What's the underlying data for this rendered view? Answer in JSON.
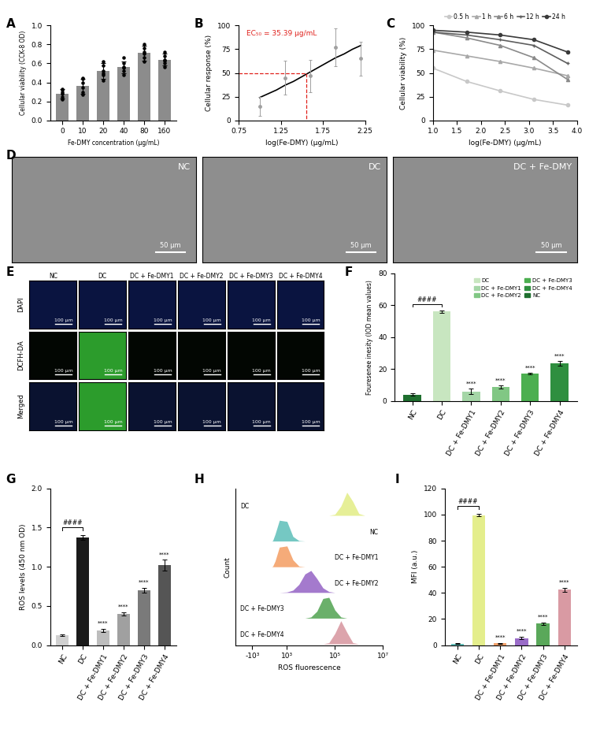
{
  "chart_data": [
    {
      "type": "bar",
      "title": "A",
      "categories": [
        "0",
        "10",
        "20",
        "40",
        "80",
        "160"
      ],
      "values": [
        0.28,
        0.36,
        0.52,
        0.56,
        0.71,
        0.64
      ],
      "errors": [
        0.05,
        0.08,
        0.08,
        0.06,
        0.08,
        0.06
      ],
      "points": [
        [
          0.22,
          0.25,
          0.28,
          0.3,
          0.32,
          0.33
        ],
        [
          0.27,
          0.3,
          0.35,
          0.4,
          0.44,
          0.45
        ],
        [
          0.42,
          0.48,
          0.5,
          0.52,
          0.58,
          0.62
        ],
        [
          0.48,
          0.52,
          0.55,
          0.56,
          0.6,
          0.66
        ],
        [
          0.62,
          0.66,
          0.7,
          0.72,
          0.76,
          0.8
        ],
        [
          0.56,
          0.6,
          0.63,
          0.64,
          0.68,
          0.72
        ]
      ],
      "color": "#8c8c8c",
      "xlabel": "Fe-DMY concentration (μg/mL)",
      "ylabel": "Cellular viability (CCK-8 OD)",
      "ylim": [
        0.0,
        1.0
      ],
      "yticks": [
        0.0,
        0.2,
        0.4,
        0.6,
        0.8,
        1.0
      ]
    },
    {
      "type": "line",
      "title": "B",
      "xlabel": "log(Fe-DMY) (μg/mL)",
      "ylabel": "Cellular response (%)",
      "xlim": [
        0.75,
        2.25
      ],
      "xticks": [
        0.75,
        1.25,
        1.75,
        2.25
      ],
      "ylim": [
        0,
        100
      ],
      "yticks": [
        0,
        25,
        50,
        75,
        100
      ],
      "reference": {
        "x": 1.549,
        "y": 50,
        "color": "#e0201b",
        "label": "EC₅₀ = 35.39 μg/mL"
      },
      "series": [
        {
          "type": "line",
          "color": "#000000",
          "x": [
            1.0,
            1.1,
            1.2,
            1.3,
            1.4,
            1.5,
            1.6,
            1.7,
            1.8,
            1.9,
            2.0,
            2.1,
            2.2
          ],
          "values": [
            24,
            28,
            32,
            37,
            41,
            46,
            51,
            56,
            61,
            66,
            70,
            75,
            79
          ]
        },
        {
          "type": "scatter",
          "color": "#a0a0a0",
          "x": [
            1.0,
            1.3,
            1.6,
            1.9,
            2.2
          ],
          "values": [
            15,
            45,
            47,
            77,
            65
          ],
          "errors": [
            10,
            18,
            17,
            20,
            18
          ]
        }
      ]
    },
    {
      "type": "line",
      "title": "C",
      "xlabel": "log(Fe-DMY) (μg/mL)",
      "ylabel": "Cellular viability (%)",
      "x": [
        1.0,
        1.7,
        2.4,
        3.1,
        3.8
      ],
      "xlim": [
        1.0,
        4.0
      ],
      "xticks": [
        1.0,
        1.5,
        2.0,
        2.5,
        3.0,
        3.5,
        4.0
      ],
      "ylim": [
        0,
        100
      ],
      "yticks": [
        0,
        25,
        50,
        75,
        100
      ],
      "legend": "top",
      "series": [
        {
          "name": "0.5 h",
          "color": "#c8c8c8",
          "marker": "circle",
          "values": [
            55,
            41,
            31,
            22,
            16
          ]
        },
        {
          "name": "1 h",
          "color": "#a8a8a8",
          "marker": "triangle",
          "values": [
            74,
            68,
            62,
            55,
            47
          ]
        },
        {
          "name": "6 h",
          "color": "#8a8a8a",
          "marker": "triangle",
          "values": [
            93,
            87,
            79,
            66,
            43
          ]
        },
        {
          "name": "12 h",
          "color": "#5e5e5e",
          "marker": "plus",
          "values": [
            93,
            90,
            85,
            79,
            60
          ]
        },
        {
          "name": "24 h",
          "color": "#3a3a3a",
          "marker": "circle",
          "values": [
            95,
            93,
            90,
            85,
            72
          ]
        }
      ]
    },
    {
      "type": "image",
      "title": "D",
      "panels": [
        "NC",
        "DC",
        "DC + Fe-DMY"
      ],
      "scale_bar": "50 μm"
    },
    {
      "type": "image",
      "title": "E",
      "rows": [
        "DAPI",
        "DCFH-DA",
        "Merged"
      ],
      "columns": [
        "NC",
        "DC",
        "DC + Fe-DMY1",
        "DC + Fe-DMY2",
        "DC + Fe-DMY3",
        "DC + Fe-DMY4"
      ],
      "scale_bar": "100 μm"
    },
    {
      "type": "bar",
      "title": "F",
      "categories": [
        "NC",
        "DC",
        "DC + Fe-DMY1",
        "DC + Fe-DMY2",
        "DC + Fe-DMY3",
        "DC + Fe-DMY4"
      ],
      "values": [
        4,
        56,
        6,
        9,
        17,
        23.5
      ],
      "errors": [
        0.8,
        0.8,
        1.8,
        1.0,
        0.5,
        1.5
      ],
      "colors": [
        "#1f6f2f",
        "#c8e6c0",
        "#a5d6a7",
        "#81c784",
        "#4caf50",
        "#2f8f3f"
      ],
      "ylabel": "Fouresenee inesity (IOD mean values)",
      "ylim": [
        0,
        80
      ],
      "yticks": [
        0,
        20,
        40,
        60,
        80
      ],
      "legend": "upper right",
      "legend_entries": [
        "DC",
        "DC + Fe-DMY1",
        "DC + Fe-DMY2",
        "DC + Fe-DMY3",
        "DC + Fe-DMY4",
        "NC"
      ],
      "bracket_label": "####",
      "significance": [
        null,
        null,
        "****",
        "****",
        "****",
        "****"
      ]
    },
    {
      "type": "bar",
      "title": "G",
      "categories": [
        "NC",
        "DC",
        "DC + Fe-DMY1",
        "DC + Fe-DMY2",
        "DC + Fe-DMY3",
        "DC + Fe-DMY4"
      ],
      "values": [
        0.13,
        1.37,
        0.19,
        0.4,
        0.7,
        1.02
      ],
      "errors": [
        0.01,
        0.03,
        0.02,
        0.02,
        0.03,
        0.07
      ],
      "colors": [
        "#d0d0d0",
        "#1a1a1a",
        "#bdbdbd",
        "#a0a0a0",
        "#7a7a7a",
        "#555555"
      ],
      "ylabel": "ROS levels (450 nm OD)",
      "ylim": [
        0.0,
        2.0
      ],
      "yticks": [
        0.0,
        0.5,
        1.0,
        1.5,
        2.0
      ],
      "bracket_label": "####",
      "significance": [
        null,
        null,
        "****",
        "****",
        "****",
        "****"
      ]
    },
    {
      "type": "ridgeline",
      "title": "H",
      "xlabel": "ROS fluorescence",
      "ylabel": "Count",
      "log": "x",
      "tick_labels": "x",
      "x": [
        100,
        178,
        316,
        562,
        1000,
        1778,
        3162,
        5623,
        10000,
        17783,
        31623,
        56234,
        100000,
        177828,
        316228,
        562341,
        1000000,
        1778279,
        3162278
      ],
      "xlim": [
        -5000,
        10000000
      ],
      "xticks": [
        {
          "value": -1000,
          "label": "-10³"
        },
        {
          "value": 1000,
          "label": "10³"
        },
        {
          "value": 100000,
          "label": "10⁵"
        },
        {
          "value": 10000000,
          "label": "10⁷"
        }
      ],
      "series": [
        {
          "name": "DC",
          "color": "#e4ee8c",
          "values": [
            0,
            0,
            0,
            0,
            0,
            0,
            0,
            0,
            0,
            0,
            0,
            0,
            0.05,
            0.4,
            1.0,
            0.6,
            0.08,
            0,
            0
          ]
        },
        {
          "name": "NC",
          "color": "#66c2bd",
          "values": [
            0,
            0.02,
            0.3,
            0.9,
            0.85,
            0.2,
            0.02,
            0,
            0,
            0,
            0,
            0,
            0,
            0,
            0,
            0,
            0,
            0,
            0
          ]
        },
        {
          "name": "DC + Fe-DMY1",
          "color": "#f4a26b",
          "values": [
            0,
            0.02,
            0.25,
            0.85,
            0.9,
            0.3,
            0.03,
            0,
            0,
            0,
            0,
            0,
            0,
            0,
            0,
            0,
            0,
            0,
            0
          ]
        },
        {
          "name": "DC + Fe-DMY2",
          "color": "#9a6cc8",
          "values": [
            0,
            0,
            0,
            0,
            0.02,
            0.1,
            0.35,
            0.8,
            0.95,
            0.6,
            0.2,
            0.04,
            0,
            0,
            0,
            0,
            0,
            0,
            0
          ]
        },
        {
          "name": "DC + Fe-DMY3",
          "color": "#5aa85a",
          "values": [
            0,
            0,
            0,
            0,
            0,
            0,
            0,
            0,
            0.05,
            0.3,
            0.85,
            0.9,
            0.35,
            0.05,
            0,
            0,
            0,
            0,
            0
          ]
        },
        {
          "name": "DC + Fe-DMY4",
          "color": "#d99aa3",
          "values": [
            0,
            0,
            0,
            0,
            0,
            0,
            0,
            0,
            0,
            0,
            0,
            0.05,
            0.45,
            1.0,
            0.5,
            0.05,
            0,
            0,
            0
          ]
        }
      ]
    },
    {
      "type": "bar",
      "title": "I",
      "categories": [
        "NC",
        "DC",
        "DC + Fe-DMY1",
        "DC + Fe-DMY2",
        "DC + Fe-DMY3",
        "DC + Fe-DMY4"
      ],
      "values": [
        1,
        99.5,
        1.5,
        5.5,
        16.5,
        42.5
      ],
      "errors": [
        0.3,
        1.0,
        0.3,
        0.8,
        0.8,
        1.5
      ],
      "colors": [
        "#66c2bd",
        "#e4ee8c",
        "#f4a26b",
        "#9a6cc8",
        "#5aa85a",
        "#d99aa3"
      ],
      "ylabel": "MFI (a.u.)",
      "ylim": [
        0,
        120
      ],
      "yticks": [
        0,
        20,
        40,
        60,
        80,
        100,
        120
      ],
      "bracket_label": "####",
      "significance": [
        null,
        null,
        "****",
        "****",
        "****",
        "****"
      ]
    }
  ]
}
